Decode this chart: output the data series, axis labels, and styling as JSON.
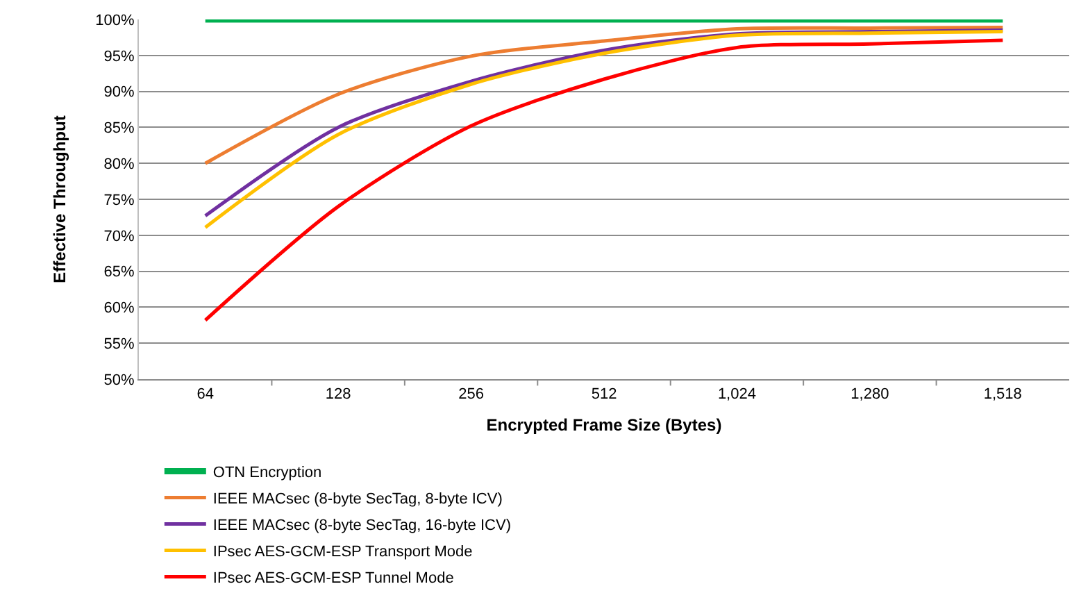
{
  "chart_data": {
    "type": "line",
    "xlabel": "Encrypted Frame Size (Bytes)",
    "ylabel": "Effective Throughput",
    "categories": [
      "64",
      "128",
      "256",
      "512",
      "1,024",
      "1,280",
      "1,518"
    ],
    "series": [
      {
        "name": "OTN Encryption",
        "color": "#00b050",
        "values": [
          100,
          100,
          100,
          100,
          100,
          100,
          100
        ]
      },
      {
        "name": "IEEE MACsec (8-byte SecTag, 8-byte ICV)",
        "color": "#ed7d31",
        "values": [
          80,
          89.6,
          94.9,
          97,
          98.7,
          98.8,
          98.9
        ]
      },
      {
        "name": "IEEE MACsec (8-byte SecTag, 16-byte ICV)",
        "color": "#7030a0",
        "values": [
          72.7,
          85,
          91.4,
          95.7,
          98,
          98.3,
          98.5
        ]
      },
      {
        "name": "IPsec AES-GCM-ESP Transport Mode",
        "color": "#ffc000",
        "values": [
          71.1,
          84,
          91,
          95.3,
          97.8,
          98.1,
          98.3
        ]
      },
      {
        "name": "IPsec AES-GCM-ESP Tunnel Mode",
        "color": "#ff0000",
        "values": [
          58.2,
          74,
          85.2,
          91.7,
          96.1,
          96.6,
          97.1
        ]
      }
    ],
    "ylim": [
      50,
      100
    ],
    "yticks": [
      {
        "value": 50,
        "label": "50%"
      },
      {
        "value": 55,
        "label": "55%"
      },
      {
        "value": 60,
        "label": "60%"
      },
      {
        "value": 65,
        "label": "65%"
      },
      {
        "value": 70,
        "label": "70%"
      },
      {
        "value": 75,
        "label": "75%"
      },
      {
        "value": 80,
        "label": "80%"
      },
      {
        "value": 85,
        "label": "85%"
      },
      {
        "value": 90,
        "label": "90%"
      },
      {
        "value": 95,
        "label": "95%"
      },
      {
        "value": 100,
        "label": "100%"
      }
    ],
    "grid": "y",
    "legend": "bottom",
    "marker": "none",
    "line_style": "solid"
  }
}
